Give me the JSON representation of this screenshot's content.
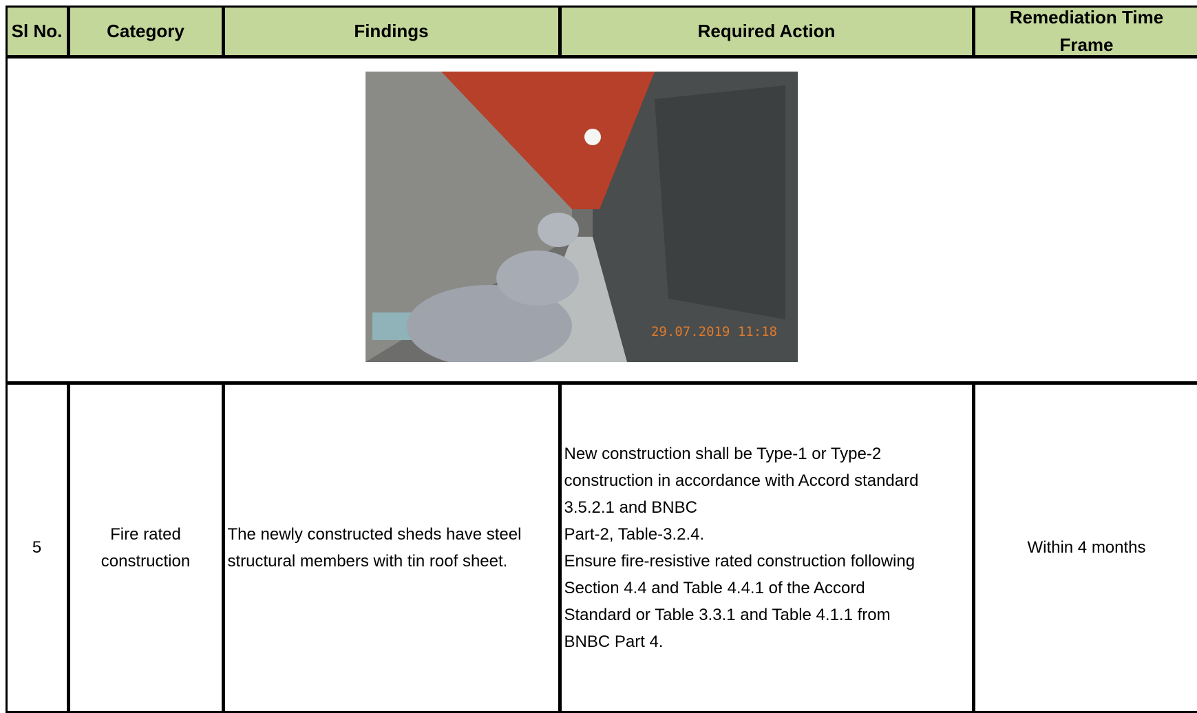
{
  "table": {
    "headers": [
      "Sl No.",
      "Category",
      "Findings",
      "Required Action",
      [
        "Remediation Time",
        "Frame"
      ]
    ],
    "photo": {
      "timestamp": "29.07.2019 11:18"
    },
    "rows": [
      [
        "5",
        [
          "Fire rated",
          "construction"
        ],
        [
          "The newly constructed sheds have steel",
          "structural members with tin roof sheet."
        ],
        [
          "New construction shall be Type-1 or Type-2",
          "construction in accordance with Accord standard",
          "3.5.2.1 and BNBC",
          "Part-2, Table-3.2.4.",
          "Ensure fire-resistive rated construction following",
          "Section 4.4 and Table 4.4.1 of the Accord",
          "Standard or Table 3.3.1 and Table 4.1.1 from",
          "BNBC Part 4."
        ],
        "Within 4 months"
      ]
    ]
  }
}
